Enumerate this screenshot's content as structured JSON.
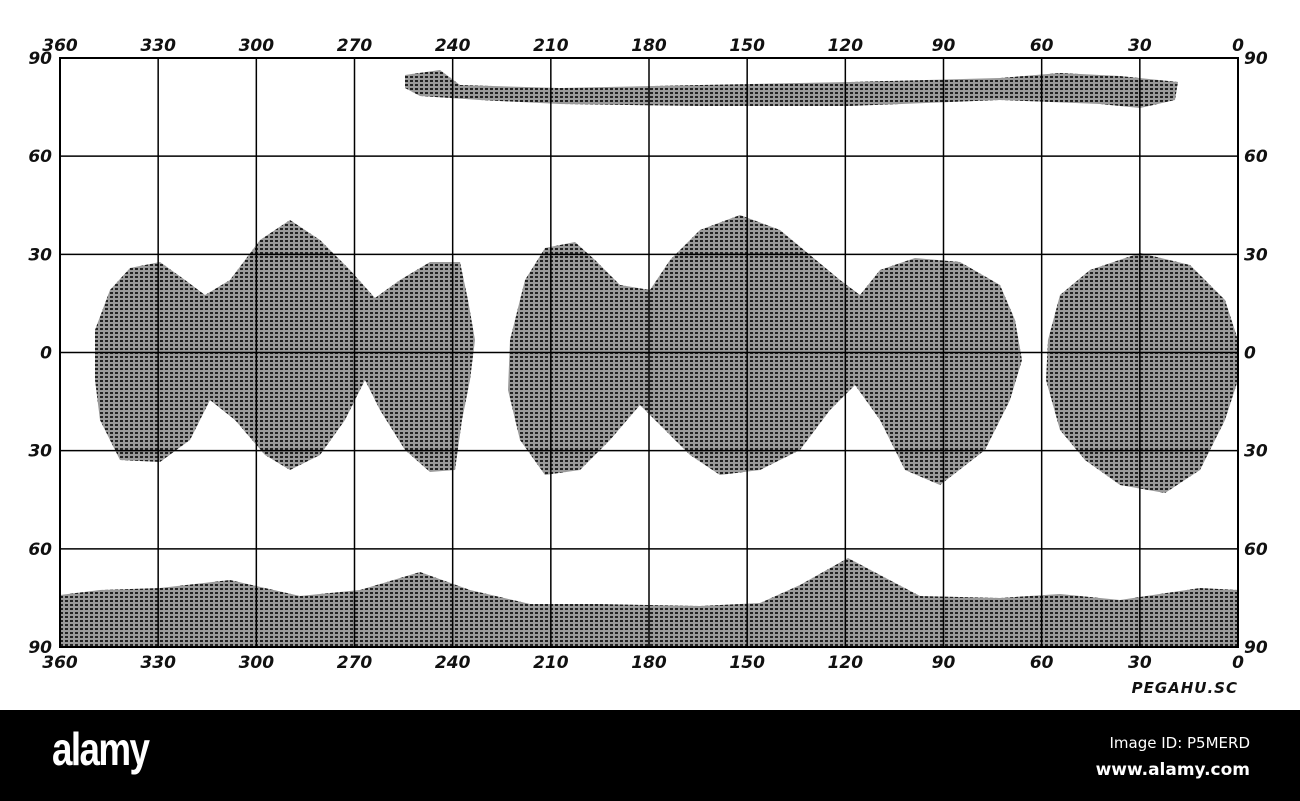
{
  "map": {
    "top_longitude_labels": [
      "360",
      "330",
      "300",
      "270",
      "240",
      "210",
      "180",
      "150",
      "120",
      "90",
      "60",
      "30",
      "0"
    ],
    "bottom_longitude_labels": [
      "360",
      "330",
      "300",
      "270",
      "240",
      "210",
      "180",
      "150",
      "120",
      "90",
      "60",
      "30",
      "0"
    ],
    "left_latitude_labels": [
      "90",
      "60",
      "30",
      "0",
      "30",
      "60",
      "90"
    ],
    "right_latitude_labels": [
      "90",
      "60",
      "30",
      "0",
      "30",
      "60",
      "90"
    ],
    "shading_color": "#555555",
    "credit": "PEGAHU.SC"
  },
  "footer": {
    "logo": "alamy",
    "image_id": "Image ID: P5MERD",
    "site": "www.alamy.com"
  }
}
